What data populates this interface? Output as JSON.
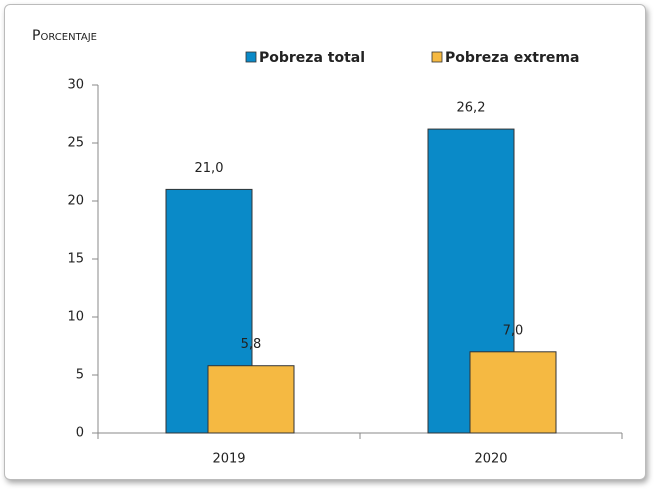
{
  "chart_data": {
    "type": "bar",
    "y_label": "Porcentaje",
    "categories": [
      "2019",
      "2020"
    ],
    "series": [
      {
        "name": "Pobreza total",
        "color": "#0a8ac8",
        "values": [
          21.0,
          26.2
        ],
        "value_labels": [
          "21,0",
          "26,2"
        ]
      },
      {
        "name": "Pobreza extrema",
        "color": "#f5b942",
        "values": [
          5.8,
          7.0
        ],
        "value_labels": [
          "5,8",
          "7,0"
        ]
      }
    ],
    "ylim": [
      0,
      30
    ],
    "yticks": [
      0,
      5,
      10,
      15,
      20,
      25,
      30
    ],
    "grid": false,
    "legend": "top"
  }
}
